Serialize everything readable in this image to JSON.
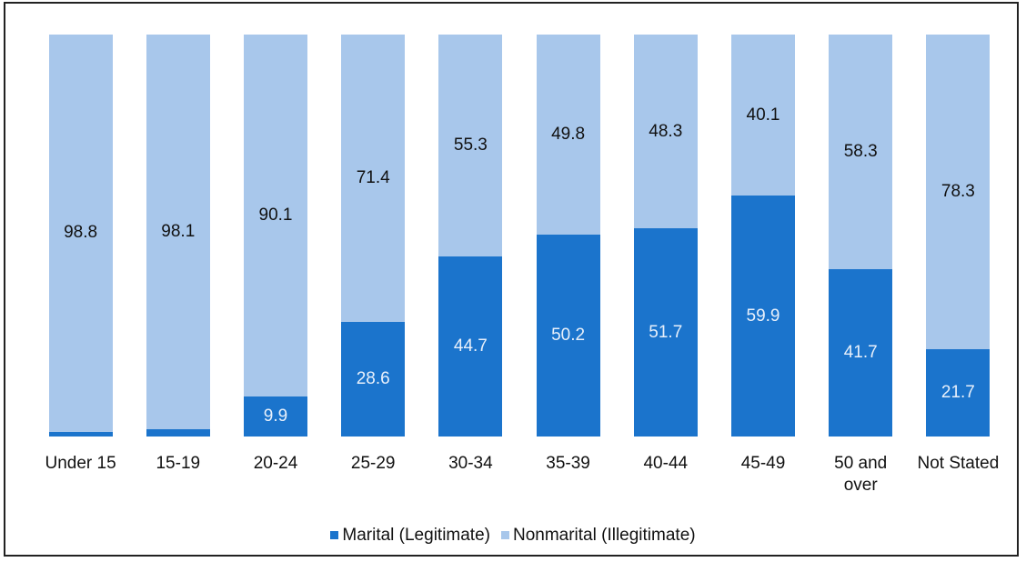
{
  "chart_data": {
    "type": "stacked_bar_100",
    "categories": [
      "Under 15",
      "15-19",
      "20-24",
      "25-29",
      "30-34",
      "35-39",
      "40-44",
      "45-49",
      "50 and over",
      "Not Stated"
    ],
    "series": [
      {
        "name": "Marital (Legitimate)",
        "color": "#1b74cc",
        "values": [
          1.2,
          1.9,
          9.9,
          28.6,
          44.7,
          50.2,
          51.7,
          59.9,
          41.7,
          21.7
        ]
      },
      {
        "name": "Nonmarital (Illegitimate)",
        "color": "#a8c7eb",
        "values": [
          98.8,
          98.1,
          90.1,
          71.4,
          55.3,
          49.8,
          48.3,
          40.1,
          58.3,
          78.3
        ]
      }
    ],
    "legend": "bottom"
  }
}
